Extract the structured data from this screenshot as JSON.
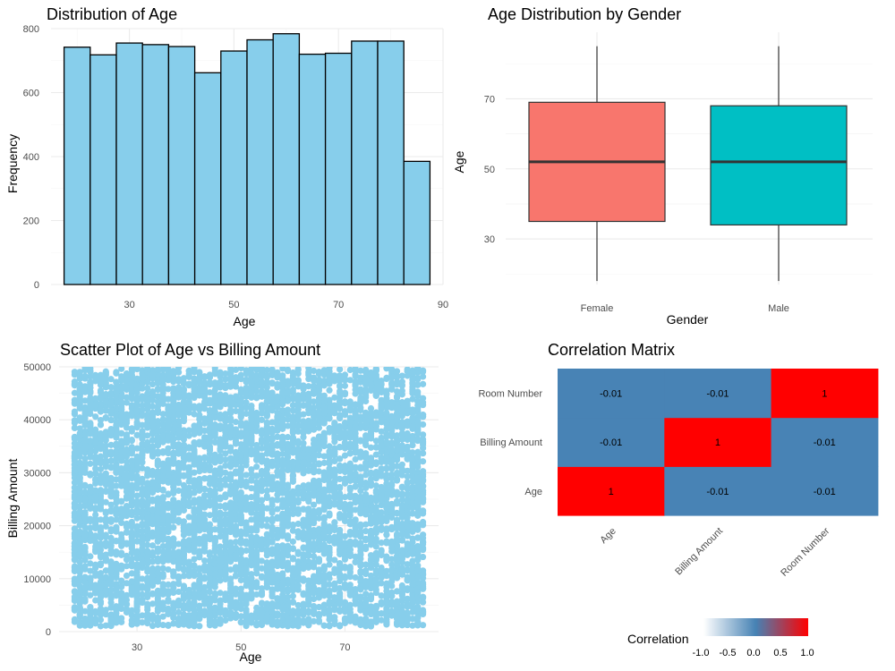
{
  "chart_data": [
    {
      "type": "bar",
      "subtype": "histogram",
      "title": "Distribution of Age",
      "xlabel": "Age",
      "ylabel": "Frequency",
      "bin_width": 5,
      "bins": [
        {
          "x0": 17.5,
          "x1": 22.5,
          "count": 742
        },
        {
          "x0": 22.5,
          "x1": 27.5,
          "count": 718
        },
        {
          "x0": 27.5,
          "x1": 32.5,
          "count": 755
        },
        {
          "x0": 32.5,
          "x1": 37.5,
          "count": 750
        },
        {
          "x0": 37.5,
          "x1": 42.5,
          "count": 744
        },
        {
          "x0": 42.5,
          "x1": 47.5,
          "count": 662
        },
        {
          "x0": 47.5,
          "x1": 52.5,
          "count": 730
        },
        {
          "x0": 52.5,
          "x1": 57.5,
          "count": 765
        },
        {
          "x0": 57.5,
          "x1": 62.5,
          "count": 784
        },
        {
          "x0": 62.5,
          "x1": 67.5,
          "count": 720
        },
        {
          "x0": 67.5,
          "x1": 72.5,
          "count": 723
        },
        {
          "x0": 72.5,
          "x1": 77.5,
          "count": 761
        },
        {
          "x0": 77.5,
          "x1": 82.5,
          "count": 761
        },
        {
          "x0": 82.5,
          "x1": 87.5,
          "count": 385
        }
      ],
      "xlim": [
        15,
        90
      ],
      "ylim": [
        0,
        800
      ],
      "xticks": [
        30,
        50,
        70,
        90
      ],
      "yticks": [
        0,
        200,
        400,
        600,
        800
      ],
      "fill_color": "#87CEEB",
      "edge_color": "#000000"
    },
    {
      "type": "boxplot",
      "title": "Age Distribution by Gender",
      "xlabel": "Gender",
      "ylabel": "Age",
      "categories": [
        "Female",
        "Male"
      ],
      "boxes": [
        {
          "name": "Female",
          "min": 18,
          "q1": 35,
          "median": 52,
          "q3": 69,
          "max": 85,
          "color": "#F8766D"
        },
        {
          "name": "Male",
          "min": 18,
          "q1": 34,
          "median": 52,
          "q3": 68,
          "max": 85,
          "color": "#00BFC4"
        }
      ],
      "ylim": [
        17,
        89
      ],
      "yticks": [
        30,
        50,
        70
      ]
    },
    {
      "type": "scatter",
      "title": "Scatter Plot of Age vs Billing Amount",
      "xlabel": "Age",
      "ylabel": "Billing Amount",
      "x_range": [
        18,
        85
      ],
      "y_range": [
        1000,
        49800
      ],
      "n_points": 10000,
      "xlim": [
        15,
        88
      ],
      "ylim": [
        0,
        50000
      ],
      "xticks": [
        30,
        50,
        70
      ],
      "yticks": [
        0,
        10000,
        20000,
        30000,
        40000,
        50000
      ],
      "point_color": "#87CEEB"
    },
    {
      "type": "heatmap",
      "title": "Correlation Matrix",
      "variables": [
        "Age",
        "Billing Amount",
        "Room Number"
      ],
      "matrix": [
        [
          1,
          -0.01,
          -0.01
        ],
        [
          -0.01,
          1,
          -0.01
        ],
        [
          -0.01,
          -0.01,
          1
        ]
      ],
      "legend": {
        "title": "Correlation",
        "ticks": [
          "-1.0",
          "-0.5",
          "0.0",
          "0.5",
          "1.0"
        ],
        "low_color": "#FFFFFF",
        "mid_color": "#4682B4",
        "high_color": "#FF0000",
        "position": "bottom"
      }
    }
  ]
}
